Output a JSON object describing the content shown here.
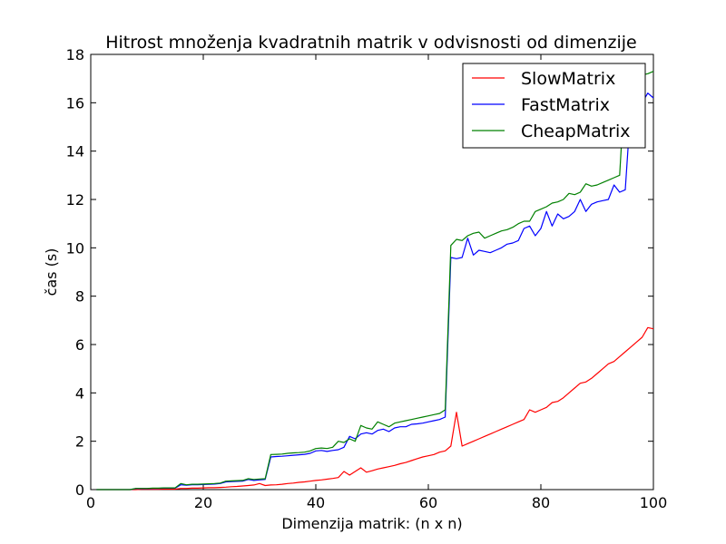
{
  "chart_data": {
    "type": "line",
    "title": "Hitrost množenja kvadratnih matrik v odvisnosti od dimenzije",
    "xlabel": "Dimenzija matrik: (n x n)",
    "ylabel": "čas (s)",
    "xlim": [
      0,
      100
    ],
    "ylim": [
      0,
      18
    ],
    "xticks": [
      "0",
      "20",
      "40",
      "60",
      "80",
      "100"
    ],
    "yticks": [
      "0",
      "2",
      "4",
      "6",
      "8",
      "10",
      "12",
      "14",
      "16",
      "18"
    ],
    "grid": false,
    "legend_position": "top-right",
    "x": [
      1,
      2,
      3,
      4,
      5,
      6,
      7,
      8,
      9,
      10,
      11,
      12,
      13,
      14,
      15,
      16,
      17,
      18,
      19,
      20,
      21,
      22,
      23,
      24,
      25,
      26,
      27,
      28,
      29,
      30,
      31,
      32,
      33,
      34,
      35,
      36,
      37,
      38,
      39,
      40,
      41,
      42,
      43,
      44,
      45,
      46,
      47,
      48,
      49,
      50,
      51,
      52,
      53,
      54,
      55,
      56,
      57,
      58,
      59,
      60,
      61,
      62,
      63,
      64,
      65,
      66,
      67,
      68,
      69,
      70,
      71,
      72,
      73,
      74,
      75,
      76,
      77,
      78,
      79,
      80,
      81,
      82,
      83,
      84,
      85,
      86,
      87,
      88,
      89,
      90,
      91,
      92,
      93,
      94,
      95,
      96,
      97,
      98,
      99,
      100
    ],
    "series": [
      {
        "name": "SlowMatrix",
        "color": "#ff0000",
        "values": [
          0.0,
          0.0,
          0.0,
          0.0,
          0.0,
          0.0,
          0.0,
          0.0,
          0.01,
          0.01,
          0.01,
          0.01,
          0.02,
          0.02,
          0.02,
          0.05,
          0.05,
          0.06,
          0.06,
          0.07,
          0.08,
          0.08,
          0.09,
          0.1,
          0.12,
          0.13,
          0.15,
          0.17,
          0.19,
          0.25,
          0.17,
          0.19,
          0.2,
          0.22,
          0.25,
          0.27,
          0.3,
          0.32,
          0.35,
          0.38,
          0.4,
          0.43,
          0.46,
          0.5,
          0.75,
          0.6,
          0.75,
          0.9,
          0.72,
          0.78,
          0.85,
          0.9,
          0.95,
          1.0,
          1.07,
          1.12,
          1.2,
          1.28,
          1.35,
          1.4,
          1.45,
          1.55,
          1.6,
          1.8,
          3.2,
          1.8,
          1.9,
          2.0,
          2.1,
          2.2,
          2.3,
          2.4,
          2.5,
          2.6,
          2.7,
          2.8,
          2.9,
          3.3,
          3.2,
          3.3,
          3.4,
          3.6,
          3.65,
          3.8,
          4.0,
          4.2,
          4.4,
          4.45,
          4.6,
          4.8,
          5.0,
          5.2,
          5.3,
          5.5,
          5.7,
          5.9,
          6.1,
          6.3,
          6.7,
          6.65
        ]
      },
      {
        "name": "FastMatrix",
        "color": "#0000ff",
        "values": [
          0.0,
          0.0,
          0.0,
          0.0,
          0.0,
          0.0,
          0.0,
          0.04,
          0.04,
          0.04,
          0.05,
          0.05,
          0.06,
          0.06,
          0.06,
          0.2,
          0.18,
          0.2,
          0.2,
          0.21,
          0.22,
          0.23,
          0.25,
          0.32,
          0.33,
          0.34,
          0.35,
          0.42,
          0.38,
          0.4,
          0.42,
          1.35,
          1.37,
          1.38,
          1.4,
          1.42,
          1.44,
          1.46,
          1.5,
          1.6,
          1.62,
          1.58,
          1.62,
          1.65,
          1.75,
          2.2,
          2.1,
          2.3,
          2.35,
          2.3,
          2.45,
          2.5,
          2.4,
          2.55,
          2.6,
          2.6,
          2.7,
          2.72,
          2.75,
          2.8,
          2.85,
          2.9,
          3.0,
          9.6,
          9.55,
          9.6,
          10.4,
          9.7,
          9.9,
          9.85,
          9.8,
          9.9,
          10.0,
          10.15,
          10.2,
          10.3,
          10.8,
          10.9,
          10.5,
          10.8,
          11.5,
          10.9,
          11.4,
          11.2,
          11.3,
          11.5,
          12.0,
          11.5,
          11.8,
          11.9,
          11.95,
          12.0,
          12.6,
          12.3,
          12.4,
          15.9,
          15.9,
          16.0,
          16.4,
          16.2
        ]
      },
      {
        "name": "CheapMatrix",
        "color": "#008000",
        "values": [
          0.0,
          0.0,
          0.0,
          0.0,
          0.0,
          0.0,
          0.0,
          0.05,
          0.05,
          0.05,
          0.06,
          0.06,
          0.07,
          0.07,
          0.07,
          0.25,
          0.2,
          0.22,
          0.22,
          0.23,
          0.24,
          0.25,
          0.27,
          0.35,
          0.36,
          0.37,
          0.38,
          0.45,
          0.42,
          0.44,
          0.45,
          1.45,
          1.46,
          1.47,
          1.5,
          1.52,
          1.53,
          1.55,
          1.6,
          1.7,
          1.72,
          1.7,
          1.75,
          2.0,
          1.95,
          2.1,
          2.0,
          2.65,
          2.55,
          2.5,
          2.8,
          2.7,
          2.6,
          2.75,
          2.8,
          2.85,
          2.9,
          2.95,
          3.0,
          3.05,
          3.1,
          3.15,
          3.3,
          10.1,
          10.35,
          10.3,
          10.5,
          10.6,
          10.65,
          10.4,
          10.5,
          10.6,
          10.7,
          10.75,
          10.85,
          11.0,
          11.1,
          11.1,
          11.5,
          11.6,
          11.7,
          11.85,
          11.9,
          12.0,
          12.25,
          12.2,
          12.3,
          12.65,
          12.55,
          12.6,
          12.7,
          12.8,
          12.9,
          13.0,
          17.0,
          17.1,
          17.1,
          17.15,
          17.2,
          17.3
        ]
      }
    ]
  }
}
